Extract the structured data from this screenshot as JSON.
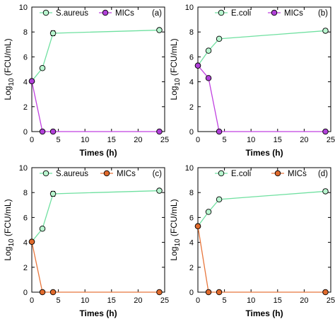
{
  "chart_data": [
    {
      "type": "line",
      "panel_label": "(a)",
      "xlabel": "Times (h)",
      "ylabel_main": "Log",
      "ylabel_sub": "10",
      "ylabel_rest": " (FCU/mL)",
      "xlim": [
        0,
        25
      ],
      "ylim": [
        0,
        10
      ],
      "xticks": [
        0,
        5,
        10,
        15,
        20,
        25
      ],
      "yticks": [
        0,
        2,
        4,
        6,
        8,
        10
      ],
      "grid": false,
      "legend": "top",
      "series": [
        {
          "name": "S.aureus",
          "color": "#6fe0a0",
          "fill": "#b8f5cf",
          "x": [
            0,
            2,
            4,
            24
          ],
          "y": [
            4.05,
            5.1,
            7.9,
            8.15
          ],
          "err": [
            0,
            0,
            0.2,
            0
          ]
        },
        {
          "name": "MICs",
          "color": "#c040e0",
          "fill": "#b040d8",
          "x": [
            0,
            2,
            4,
            24
          ],
          "y": [
            4.05,
            0,
            0,
            0
          ],
          "err": [
            0,
            0,
            0,
            0
          ]
        }
      ]
    },
    {
      "type": "line",
      "panel_label": "(b)",
      "xlabel": "Times (h)",
      "ylabel_main": "Log",
      "ylabel_sub": "10",
      "ylabel_rest": " (FCU/mL)",
      "xlim": [
        0,
        25
      ],
      "ylim": [
        0,
        10
      ],
      "xticks": [
        0,
        5,
        10,
        15,
        20,
        25
      ],
      "yticks": [
        0,
        2,
        4,
        6,
        8,
        10
      ],
      "grid": false,
      "legend": "top",
      "series": [
        {
          "name": "E.coli",
          "color": "#6fe0a0",
          "fill": "#b8f5cf",
          "x": [
            0,
            2,
            4,
            24
          ],
          "y": [
            5.3,
            6.5,
            7.45,
            8.1
          ],
          "err": [
            0,
            0,
            0,
            0
          ]
        },
        {
          "name": "MICs",
          "color": "#c040e0",
          "fill": "#b040d8",
          "x": [
            0,
            2,
            4,
            24
          ],
          "y": [
            5.3,
            4.3,
            0,
            0
          ],
          "err": [
            0,
            0,
            0,
            0
          ]
        }
      ]
    },
    {
      "type": "line",
      "panel_label": "(c)",
      "xlabel": "Times (h)",
      "ylabel_main": "Log",
      "ylabel_sub": "10",
      "ylabel_rest": " (FCU/mL)",
      "xlim": [
        0,
        25
      ],
      "ylim": [
        0,
        10
      ],
      "xticks": [
        0,
        5,
        10,
        15,
        20,
        25
      ],
      "yticks": [
        0,
        2,
        4,
        6,
        8,
        10
      ],
      "grid": false,
      "legend": "top",
      "series": [
        {
          "name": "S.aureus",
          "color": "#6fe0a0",
          "fill": "#b8f5cf",
          "x": [
            0,
            2,
            4,
            24
          ],
          "y": [
            4.05,
            5.1,
            7.9,
            8.15
          ],
          "err": [
            0,
            0,
            0.2,
            0
          ]
        },
        {
          "name": "MICs",
          "color": "#e8763c",
          "fill": "#e06a2c",
          "x": [
            0,
            2,
            4,
            24
          ],
          "y": [
            4.05,
            0,
            0,
            0
          ],
          "err": [
            0,
            0,
            0,
            0
          ]
        }
      ]
    },
    {
      "type": "line",
      "panel_label": "(d)",
      "xlabel": "Times (h)",
      "ylabel_main": "Log",
      "ylabel_sub": "10",
      "ylabel_rest": " (FCU/mL)",
      "xlim": [
        0,
        25
      ],
      "ylim": [
        0,
        10
      ],
      "xticks": [
        0,
        5,
        10,
        15,
        20,
        25
      ],
      "yticks": [
        0,
        2,
        4,
        6,
        8,
        10
      ],
      "grid": false,
      "legend": "top",
      "series": [
        {
          "name": "E.coli",
          "color": "#6fe0a0",
          "fill": "#b8f5cf",
          "x": [
            0,
            2,
            4,
            24
          ],
          "y": [
            5.3,
            6.45,
            7.45,
            8.1
          ],
          "err": [
            0,
            0,
            0,
            0
          ]
        },
        {
          "name": "MICs",
          "color": "#e8763c",
          "fill": "#e06a2c",
          "x": [
            0,
            2,
            4,
            24
          ],
          "y": [
            5.3,
            0,
            0,
            0
          ],
          "err": [
            0,
            0,
            0,
            0
          ]
        }
      ]
    }
  ]
}
